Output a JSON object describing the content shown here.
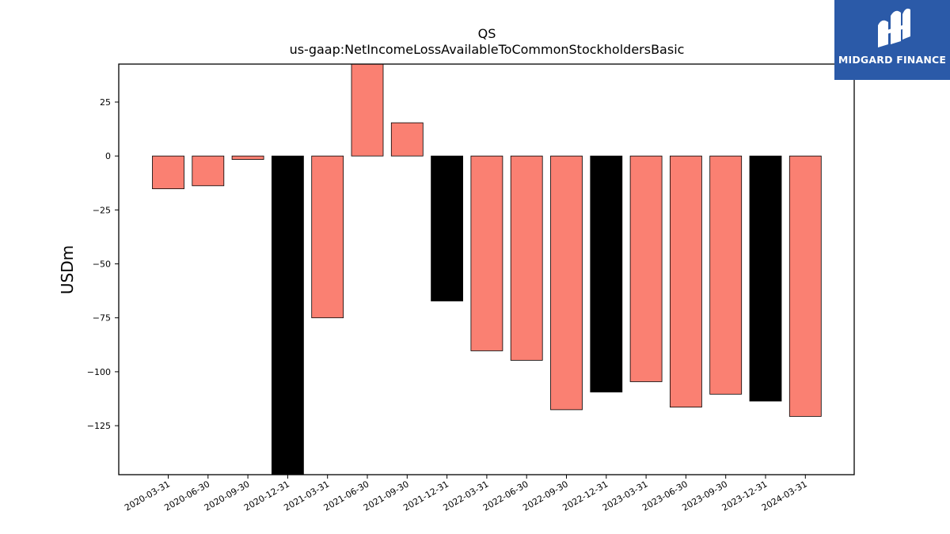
{
  "chart_data": {
    "type": "bar",
    "title": "QS",
    "subtitle": "us-gaap:NetIncomeLossAvailableToCommonStockholdersBasic",
    "xlabel": "",
    "ylabel": "USDm",
    "ylim": [
      -147.7,
      42.6
    ],
    "yticks": [
      25,
      0,
      -25,
      -50,
      -75,
      -100,
      -125
    ],
    "ytick_labels": [
      "25",
      "0",
      "−25",
      "−50",
      "−75",
      "−100",
      "−125"
    ],
    "grid": false,
    "legend": "none",
    "categories": [
      "2020-03-31",
      "2020-06-30",
      "2020-09-30",
      "2020-12-31",
      "2021-03-31",
      "2021-06-30",
      "2021-09-30",
      "2021-12-31",
      "2022-03-31",
      "2022-06-30",
      "2022-09-30",
      "2022-12-31",
      "2023-03-31",
      "2023-06-30",
      "2023-09-30",
      "2023-12-31",
      "2024-03-31"
    ],
    "values": [
      -15.2,
      -13.8,
      -1.6,
      -150.0,
      -75.0,
      45.0,
      15.4,
      -67.2,
      -90.3,
      -94.7,
      -117.6,
      -109.4,
      -104.6,
      -116.4,
      -110.4,
      -113.6,
      -120.7
    ],
    "bar_colors": [
      "#fa8072",
      "#fa8072",
      "#fa8072",
      "#000000",
      "#fa8072",
      "#fa8072",
      "#fa8072",
      "#000000",
      "#fa8072",
      "#fa8072",
      "#fa8072",
      "#000000",
      "#fa8072",
      "#fa8072",
      "#fa8072",
      "#000000",
      "#fa8072"
    ],
    "edge_color": "#000000"
  },
  "logo": {
    "text": "MIDGARD FINANCE",
    "bg_color": "#2b5aa8"
  }
}
